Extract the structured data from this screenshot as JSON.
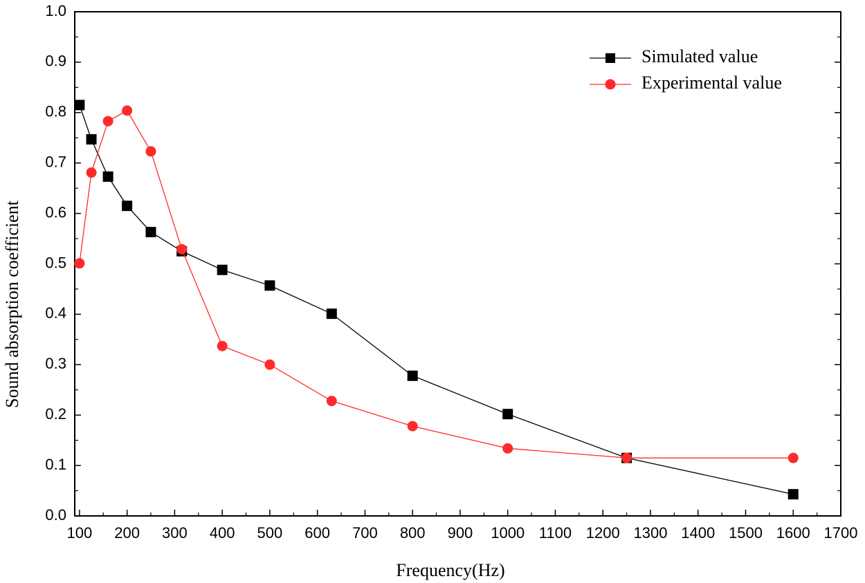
{
  "chart_data": {
    "type": "line",
    "title": "",
    "xlabel": "Frequency(Hz)",
    "ylabel": "Sound absorption coefficient",
    "xlim": [
      90,
      1700
    ],
    "ylim": [
      0.0,
      1.0
    ],
    "x_ticks": [
      100,
      200,
      300,
      400,
      500,
      600,
      700,
      800,
      900,
      1000,
      1100,
      1200,
      1300,
      1400,
      1500,
      1600,
      1700
    ],
    "x_tick_labels": [
      "100",
      "200",
      "300",
      "400",
      "500",
      "600",
      "700",
      "800",
      "900",
      "1000",
      "1100",
      "1200",
      "1300",
      "1400",
      "1500",
      "1600",
      "1700"
    ],
    "y_ticks": [
      0.0,
      0.1,
      0.2,
      0.3,
      0.4,
      0.5,
      0.6,
      0.7,
      0.8,
      0.9,
      1.0
    ],
    "y_tick_labels": [
      "0.0",
      "0.1",
      "0.2",
      "0.3",
      "0.4",
      "0.5",
      "0.6",
      "0.7",
      "0.8",
      "0.9",
      "1.0"
    ],
    "grid": false,
    "legend_position": "top-right",
    "series": [
      {
        "name": "Simulated value",
        "color": "#000000",
        "marker": "square",
        "x": [
          100,
          125,
          160,
          200,
          250,
          315,
          400,
          500,
          630,
          800,
          1000,
          1250,
          1600
        ],
        "y": [
          0.815,
          0.747,
          0.673,
          0.615,
          0.563,
          0.525,
          0.488,
          0.457,
          0.401,
          0.278,
          0.202,
          0.115,
          0.043
        ]
      },
      {
        "name": "Experimental value",
        "color": "#ff2a2a",
        "marker": "circle",
        "x": [
          100,
          125,
          160,
          200,
          250,
          315,
          400,
          500,
          630,
          800,
          1000,
          1250,
          1600
        ],
        "y": [
          0.501,
          0.681,
          0.783,
          0.804,
          0.723,
          0.529,
          0.337,
          0.3,
          0.228,
          0.178,
          0.134,
          0.115,
          0.115
        ]
      }
    ]
  }
}
